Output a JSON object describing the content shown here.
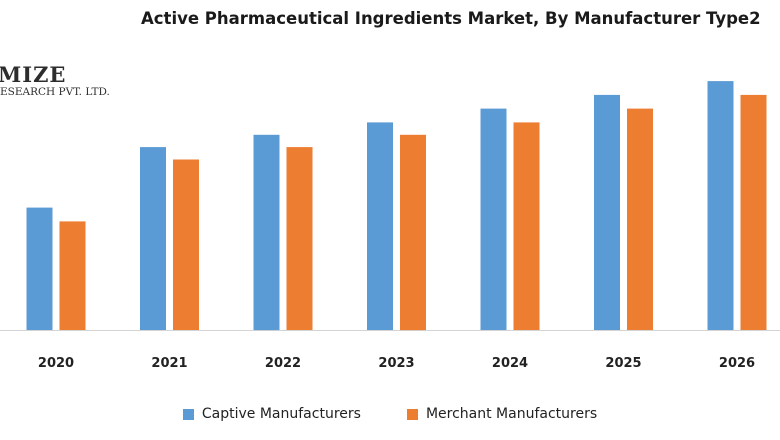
{
  "watermark": {
    "line1": "MIZE",
    "line2": "ESEARCH PVT. LTD."
  },
  "chart_data": {
    "type": "bar",
    "title": "Active Pharmaceutical Ingredients Market, By Manufacturer Type2",
    "xlabel": "",
    "ylabel": "",
    "categories": [
      "2020",
      "2021",
      "2022",
      "2023",
      "2024",
      "2025",
      "2026"
    ],
    "series": [
      {
        "name": "Captive Manufacturers",
        "color": "#5b9bd5",
        "values": [
          44.5,
          66.5,
          71,
          75.5,
          80.5,
          85.5,
          90.5
        ]
      },
      {
        "name": "Merchant Manufacturers",
        "color": "#ed7d31",
        "values": [
          39.5,
          62,
          66.5,
          71,
          75.5,
          80.5,
          85.5
        ]
      }
    ],
    "ylim": [
      0,
      100
    ],
    "grid": false,
    "legend_position": "bottom"
  }
}
